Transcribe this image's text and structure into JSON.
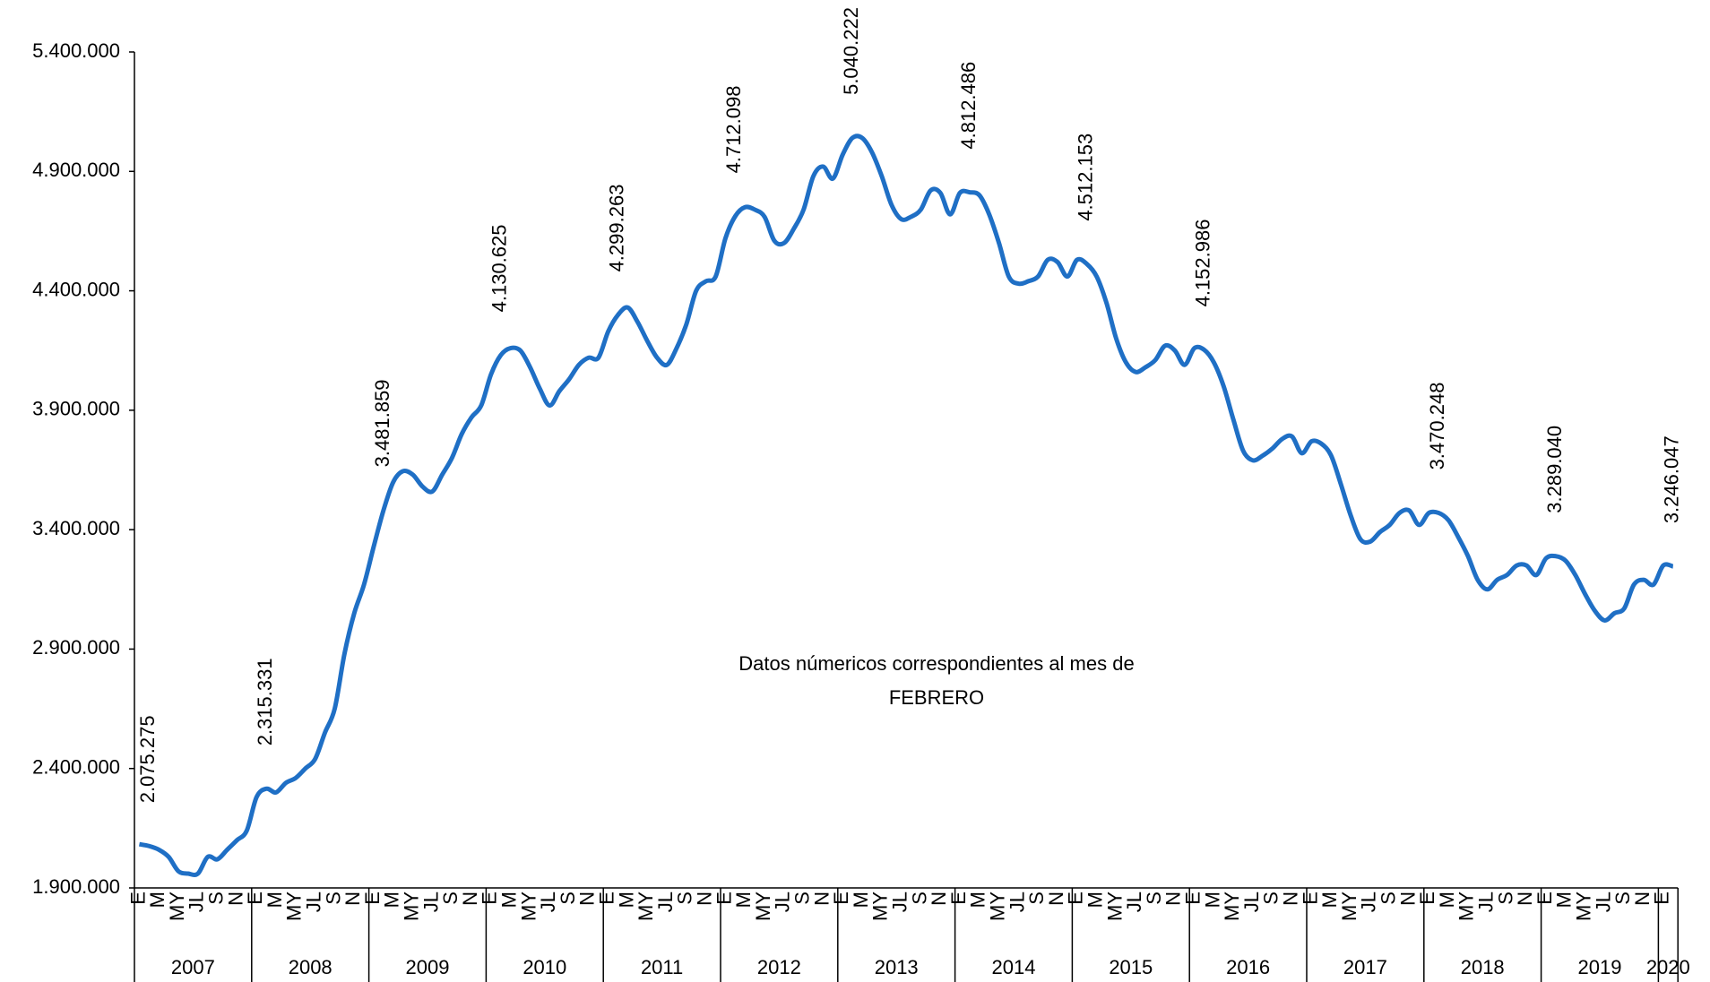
{
  "chart_data": {
    "type": "line",
    "annotation": [
      "Datos númericos correspondientes al mes de",
      "FEBRERO"
    ],
    "categories": [
      "E",
      null,
      "M",
      null,
      "MY",
      null,
      "JL",
      null,
      "S",
      null,
      "N",
      null,
      "E",
      null,
      "M",
      null,
      "MY",
      null,
      "JL",
      null,
      "S",
      null,
      "N",
      null,
      "E",
      null,
      "M",
      null,
      "MY",
      null,
      "JL",
      null,
      "S",
      null,
      "N",
      null,
      "E",
      null,
      "M",
      null,
      "MY",
      null,
      "JL",
      null,
      "S",
      null,
      "N",
      null,
      "E",
      null,
      "M",
      null,
      "MY",
      null,
      "JL",
      null,
      "S",
      null,
      "N",
      null,
      "E",
      null,
      "M",
      null,
      "MY",
      null,
      "JL",
      null,
      "S",
      null,
      "N",
      null,
      "E",
      null,
      "M",
      null,
      "MY",
      null,
      "JL",
      null,
      "S",
      null,
      "N",
      null,
      "E",
      null,
      "M",
      null,
      "MY",
      null,
      "JL",
      null,
      "S",
      null,
      "N",
      null,
      "E",
      null,
      "M",
      null,
      "MY",
      null,
      "JL",
      null,
      "S",
      null,
      "N",
      null,
      "E",
      null,
      "M",
      null,
      "MY",
      null,
      "JL",
      null,
      "S",
      null,
      "N",
      null,
      "E",
      null,
      "M",
      null,
      "MY",
      null,
      "JL",
      null,
      "S",
      null,
      "N",
      null,
      "E",
      null,
      "M",
      null,
      "MY",
      null,
      "JL",
      null,
      "S",
      null,
      "N",
      null,
      "E",
      null,
      "M",
      null,
      "MY",
      null,
      "JL",
      null,
      "S",
      null,
      "N",
      null,
      "E",
      null
    ],
    "years": [
      "2007",
      "2008",
      "2009",
      "2010",
      "2011",
      "2012",
      "2013",
      "2014",
      "2015",
      "2016",
      "2017",
      "2018",
      "2019",
      "2020"
    ],
    "series": [
      {
        "name": null,
        "color": "#1f6fc5",
        "values": [
          2083000,
          2075275,
          2060000,
          2030000,
          1970000,
          1960000,
          1960000,
          2030000,
          2020000,
          2060000,
          2100000,
          2140000,
          2280000,
          2315331,
          2300000,
          2340000,
          2360000,
          2400000,
          2440000,
          2550000,
          2650000,
          2880000,
          3050000,
          3170000,
          3330000,
          3481859,
          3600000,
          3645000,
          3630000,
          3580000,
          3560000,
          3630000,
          3700000,
          3800000,
          3870000,
          3920000,
          4050000,
          4130625,
          4160000,
          4150000,
          4080000,
          3990000,
          3920000,
          3980000,
          4030000,
          4090000,
          4120000,
          4120000,
          4230000,
          4299263,
          4330000,
          4270000,
          4190000,
          4120000,
          4090000,
          4160000,
          4260000,
          4400000,
          4440000,
          4460000,
          4620000,
          4712098,
          4750000,
          4740000,
          4710000,
          4610000,
          4600000,
          4660000,
          4740000,
          4880000,
          4920000,
          4870000,
          4970000,
          5040222,
          5040000,
          4980000,
          4880000,
          4760000,
          4700000,
          4710000,
          4740000,
          4820000,
          4810000,
          4720000,
          4810000,
          4812486,
          4800000,
          4720000,
          4600000,
          4460000,
          4430000,
          4440000,
          4460000,
          4530000,
          4520000,
          4460000,
          4530000,
          4512153,
          4460000,
          4350000,
          4200000,
          4100000,
          4060000,
          4080000,
          4110000,
          4170000,
          4150000,
          4090000,
          4160000,
          4152986,
          4100000,
          4000000,
          3860000,
          3730000,
          3690000,
          3710000,
          3740000,
          3780000,
          3790000,
          3720000,
          3770000,
          3760000,
          3710000,
          3590000,
          3460000,
          3360000,
          3350000,
          3390000,
          3420000,
          3470000,
          3480000,
          3420000,
          3470000,
          3470248,
          3440000,
          3370000,
          3290000,
          3190000,
          3150000,
          3190000,
          3210000,
          3250000,
          3250000,
          3210000,
          3280000,
          3289040,
          3270000,
          3210000,
          3130000,
          3060000,
          3020000,
          3050000,
          3070000,
          3170000,
          3190000,
          3170000,
          3250000,
          3246047
        ],
        "value_labels": [
          null,
          "2.075.275",
          null,
          null,
          null,
          null,
          null,
          null,
          null,
          null,
          null,
          null,
          null,
          "2.315.331",
          null,
          null,
          null,
          null,
          null,
          null,
          null,
          null,
          null,
          null,
          null,
          "3.481.859",
          null,
          null,
          null,
          null,
          null,
          null,
          null,
          null,
          null,
          null,
          null,
          "4.130.625",
          null,
          null,
          null,
          null,
          null,
          null,
          null,
          null,
          null,
          null,
          null,
          "4.299.263",
          null,
          null,
          null,
          null,
          null,
          null,
          null,
          null,
          null,
          null,
          null,
          "4.712.098",
          null,
          null,
          null,
          null,
          null,
          null,
          null,
          null,
          null,
          null,
          null,
          "5.040.222",
          null,
          null,
          null,
          null,
          null,
          null,
          null,
          null,
          null,
          null,
          null,
          "4.812.486",
          null,
          null,
          null,
          null,
          null,
          null,
          null,
          null,
          null,
          null,
          null,
          "4.512.153",
          null,
          null,
          null,
          null,
          null,
          null,
          null,
          null,
          null,
          null,
          null,
          "4.152.986",
          null,
          null,
          null,
          null,
          null,
          null,
          null,
          null,
          null,
          null,
          null,
          null,
          null,
          null,
          null,
          null,
          null,
          null,
          null,
          null,
          null,
          null,
          null,
          "3.470.248",
          null,
          null,
          null,
          null,
          null,
          null,
          null,
          null,
          null,
          null,
          null,
          "3.289.040",
          null,
          null,
          null,
          null,
          null,
          null,
          null,
          null,
          null,
          null,
          null,
          "3.246.047"
        ]
      }
    ],
    "ylim": [
      1900000,
      5400000
    ],
    "yticks": [
      {
        "value": 1900000,
        "label": "1.900.000"
      },
      {
        "value": 2400000,
        "label": "2.400.000"
      },
      {
        "value": 2900000,
        "label": "2.900.000"
      },
      {
        "value": 3400000,
        "label": "3.400.000"
      },
      {
        "value": 3900000,
        "label": "3.900.000"
      },
      {
        "value": 4400000,
        "label": "4.400.000"
      },
      {
        "value": 4900000,
        "label": "4.900.000"
      },
      {
        "value": 5400000,
        "label": "5.400.000"
      }
    ],
    "grid": false
  }
}
